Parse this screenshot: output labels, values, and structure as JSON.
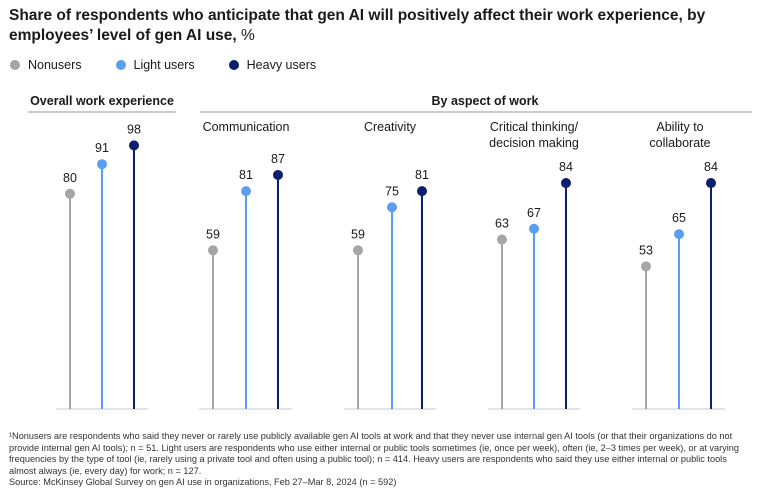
{
  "title": "Share of respondents who anticipate that gen AI will positively affect their work experience, by employees’ level of gen AI use,",
  "title_unit": "%",
  "legend": [
    {
      "name": "Nonusers",
      "color": "#a6a6a6"
    },
    {
      "name": "Light users",
      "color": "#5a9ef2"
    },
    {
      "name": "Heavy users",
      "color": "#0b1f6b"
    }
  ],
  "group_headers": {
    "overall": "Overall work experience",
    "by_aspect": "By aspect of work"
  },
  "chart_data": {
    "type": "lollipop",
    "ylim": [
      0,
      100
    ],
    "series": [
      {
        "name": "Nonusers",
        "color": "#a6a6a6"
      },
      {
        "name": "Light users",
        "color": "#5a9ef2"
      },
      {
        "name": "Heavy users",
        "color": "#0b1f6b"
      }
    ],
    "panels": [
      {
        "label": "",
        "values": [
          80,
          91,
          98
        ]
      },
      {
        "label": "Communication",
        "values": [
          59,
          81,
          87
        ]
      },
      {
        "label": "Creativity",
        "values": [
          59,
          75,
          81
        ]
      },
      {
        "label": "Critical thinking/\ndecision making",
        "values": [
          63,
          67,
          84
        ]
      },
      {
        "label": "Ability to\ncollaborate",
        "values": [
          53,
          65,
          84
        ]
      }
    ]
  },
  "footnote": {
    "line1": "¹Nonusers are respondents who said they never or rarely use publicly available gen AI tools at work and that they never use internal gen AI tools (or that their organizations do not provide internal gen AI tools); n = 51. Light users are respondents who use either internal or public tools sometimes (ie, once per week), often (ie, 2–3 times per week), or at varying frequencies by the type of tool (ie, rarely using a private tool and often using a public tool); n = 414. Heavy users are respondents who said they use either internal or public tools almost always (ie, every day) for work; n = 127.",
    "source": "Source: McKinsey Global Survey on gen AI use in organizations, Feb 27–Mar 8, 2024 (n = 592)"
  }
}
